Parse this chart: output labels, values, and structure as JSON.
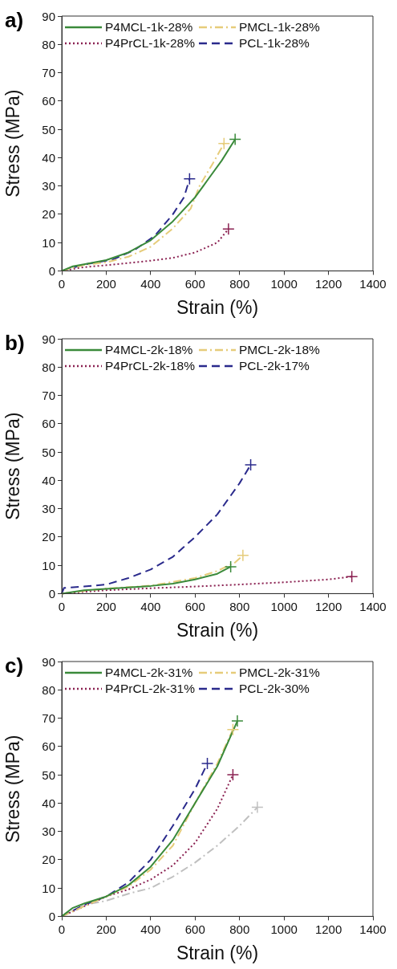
{
  "chart_data": [
    {
      "type": "line",
      "title": "a)",
      "xlabel": "Strain (%)",
      "ylabel": "Stress (MPa)",
      "xlim": [
        0,
        1400
      ],
      "xticks": [
        0,
        200,
        400,
        600,
        800,
        1000,
        1200,
        1400
      ],
      "ylim": [
        0,
        90
      ],
      "yticks": [
        0,
        10,
        20,
        30,
        40,
        50,
        60,
        70,
        80,
        90
      ],
      "legend": "top",
      "series": [
        {
          "name": "P4MCL-1k-28%",
          "color": "#3a8a3a",
          "line_style": "solid",
          "x": [
            0,
            50,
            100,
            200,
            300,
            400,
            500,
            600,
            660,
            720,
            780
          ],
          "values": [
            0,
            1.6,
            2.3,
            3.8,
            6.5,
            10.8,
            17.5,
            26,
            32.5,
            39,
            46.5
          ]
        },
        {
          "name": "PMCL-1k-28%",
          "color": "#e6cc7a",
          "line_style": "dashdot",
          "x": [
            0,
            100,
            200,
            300,
            400,
            500,
            580,
            620,
            680,
            730
          ],
          "values": [
            0,
            2.1,
            3,
            5,
            8.5,
            15,
            22,
            30,
            38,
            45
          ]
        },
        {
          "name": "P4PrCL-1k-28%",
          "color": "#8b2252",
          "line_style": "dotted",
          "x": [
            0,
            100,
            200,
            300,
            400,
            500,
            600,
            700,
            750
          ],
          "values": [
            0,
            1.3,
            2,
            2.8,
            3.6,
            4.6,
            6.5,
            10,
            14.8
          ]
        },
        {
          "name": "PCL-1k-28%",
          "color": "#2a2a8c",
          "line_style": "dashed",
          "x": [
            0,
            100,
            230,
            330,
            420,
            500,
            550,
            575
          ],
          "values": [
            0,
            2.2,
            4,
            7.5,
            12.5,
            20,
            26,
            32.5
          ]
        },
        {
          "type": "scatter",
          "marker": "cross",
          "color": "#3a8a3a",
          "x": [
            780
          ],
          "values": [
            46.5
          ]
        },
        {
          "type": "scatter",
          "marker": "cross",
          "color": "#e6cc7a",
          "x": [
            730
          ],
          "values": [
            45
          ]
        },
        {
          "type": "scatter",
          "marker": "cross",
          "color": "#8b2252",
          "x": [
            750
          ],
          "values": [
            14.8
          ]
        },
        {
          "type": "scatter",
          "marker": "cross",
          "color": "#2a2a8c",
          "x": [
            575
          ],
          "values": [
            32.5
          ]
        }
      ]
    },
    {
      "type": "line",
      "title": "b)",
      "xlabel": "Strain (%)",
      "ylabel": "Stress (MPa)",
      "xlim": [
        0,
        1400
      ],
      "xticks": [
        0,
        200,
        400,
        600,
        800,
        1000,
        1200,
        1400
      ],
      "ylim": [
        0,
        90
      ],
      "yticks": [
        0,
        10,
        20,
        30,
        40,
        50,
        60,
        70,
        80,
        90
      ],
      "legend": "top",
      "series": [
        {
          "name": "P4MCL-2k-18%",
          "color": "#3a8a3a",
          "line_style": "solid",
          "x": [
            0,
            100,
            200,
            400,
            500,
            600,
            700,
            760
          ],
          "values": [
            0,
            1.2,
            1.7,
            2.7,
            3.5,
            5,
            7,
            9.5
          ]
        },
        {
          "name": "PMCL-2k-18%",
          "color": "#e6cc7a",
          "line_style": "dashdot",
          "x": [
            0,
            200,
            400,
            600,
            700,
            780,
            815
          ],
          "values": [
            0,
            1.8,
            2.8,
            5.5,
            8,
            11,
            13.5
          ]
        },
        {
          "name": "P4PrCL-2k-18%",
          "color": "#8b2252",
          "line_style": "dotted",
          "x": [
            0,
            200,
            400,
            600,
            800,
            1000,
            1200,
            1305
          ],
          "values": [
            0,
            1.2,
            1.9,
            2.5,
            3.2,
            4,
            5,
            6
          ]
        },
        {
          "name": "PCL-2k-17%",
          "color": "#2a2a8c",
          "line_style": "dashed",
          "x": [
            0,
            10,
            100,
            200,
            300,
            400,
            500,
            600,
            700,
            800,
            850
          ],
          "values": [
            0,
            2,
            2.5,
            3.2,
            5.5,
            8.5,
            13,
            20,
            28,
            39,
            45.5
          ]
        },
        {
          "type": "scatter",
          "marker": "cross",
          "color": "#3a8a3a",
          "x": [
            760
          ],
          "values": [
            9.5
          ]
        },
        {
          "type": "scatter",
          "marker": "cross",
          "color": "#e6cc7a",
          "x": [
            815
          ],
          "values": [
            13.5
          ]
        },
        {
          "type": "scatter",
          "marker": "cross",
          "color": "#8b2252",
          "x": [
            1305
          ],
          "values": [
            6
          ]
        },
        {
          "type": "scatter",
          "marker": "cross",
          "color": "#2a2a8c",
          "x": [
            850
          ],
          "values": [
            45.5
          ]
        }
      ]
    },
    {
      "type": "line",
      "title": "c)",
      "xlabel": "Strain (%)",
      "ylabel": "Stress (MPa)",
      "xlim": [
        0,
        1400
      ],
      "xticks": [
        0,
        200,
        400,
        600,
        800,
        1000,
        1200,
        1400
      ],
      "ylim": [
        0,
        90
      ],
      "yticks": [
        0,
        10,
        20,
        30,
        40,
        50,
        60,
        70,
        80,
        90
      ],
      "legend": "top",
      "series": [
        {
          "name": "P4MCL-2k-31%",
          "color": "#3a8a3a",
          "line_style": "solid",
          "x": [
            0,
            50,
            100,
            200,
            300,
            400,
            500,
            600,
            700,
            790
          ],
          "values": [
            0,
            3,
            4.5,
            7,
            11,
            17.5,
            27,
            40,
            53,
            69
          ]
        },
        {
          "name": "PMCL-2k-31%",
          "color": "#e6cc7a",
          "line_style": "dashdot",
          "x": [
            0,
            200,
            300,
            400,
            500,
            600,
            700,
            770
          ],
          "values": [
            0,
            7,
            10.5,
            16.5,
            25,
            40,
            54,
            66
          ]
        },
        {
          "name": "P4PrCL-2k-31%",
          "color": "#8b2252",
          "line_style": "dotted",
          "x": [
            0,
            200,
            300,
            400,
            500,
            600,
            700,
            770
          ],
          "values": [
            0,
            7,
            9.5,
            13,
            18,
            26,
            38,
            50
          ]
        },
        {
          "name": "PCL-2k-30%",
          "color": "#2a2a8c",
          "line_style": "dashed",
          "x": [
            0,
            100,
            200,
            300,
            400,
            500,
            600,
            655
          ],
          "values": [
            0,
            4,
            7,
            12,
            20,
            32,
            45,
            54
          ]
        },
        {
          "color": "#c0c0c0",
          "line_style": "dashdot",
          "x": [
            0,
            100,
            200,
            300,
            400,
            500,
            600,
            700,
            800,
            880
          ],
          "values": [
            0,
            4,
            5.5,
            8,
            10,
            14,
            19,
            25,
            32,
            38.5
          ]
        },
        {
          "type": "scatter",
          "marker": "cross",
          "color": "#3a8a3a",
          "x": [
            790
          ],
          "values": [
            69
          ]
        },
        {
          "type": "scatter",
          "marker": "cross",
          "color": "#e6cc7a",
          "x": [
            770
          ],
          "values": [
            66
          ]
        },
        {
          "type": "scatter",
          "marker": "cross",
          "color": "#8b2252",
          "x": [
            770
          ],
          "values": [
            50
          ]
        },
        {
          "type": "scatter",
          "marker": "cross",
          "color": "#2a2a8c",
          "x": [
            655
          ],
          "values": [
            54
          ]
        },
        {
          "type": "scatter",
          "marker": "cross",
          "color": "#c0c0c0",
          "x": [
            880
          ],
          "values": [
            38.5
          ]
        }
      ]
    }
  ]
}
